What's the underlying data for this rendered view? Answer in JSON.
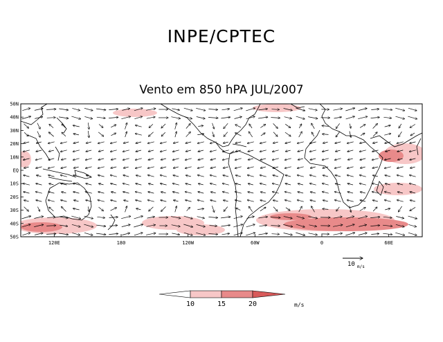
{
  "header": {
    "org": "INPE/CPTEC",
    "title": "Vento em 850 hPA JUL/2007"
  },
  "map": {
    "lat_labels": [
      "50N",
      "40N",
      "30N",
      "20N",
      "10N",
      "EQ",
      "10S",
      "20S",
      "30S",
      "40S",
      "50S"
    ],
    "lon_labels": [
      "120E",
      "180",
      "120W",
      "60W",
      "0",
      "60E"
    ],
    "shade_colors": [
      "#ffffff",
      "#f7c7c7",
      "#e88a8a",
      "#d85a5a"
    ]
  },
  "reference_vector": {
    "value": "10",
    "unit": "m/s"
  },
  "legend": {
    "ticks": [
      "10",
      "15",
      "20"
    ],
    "unit": "m/s"
  }
}
